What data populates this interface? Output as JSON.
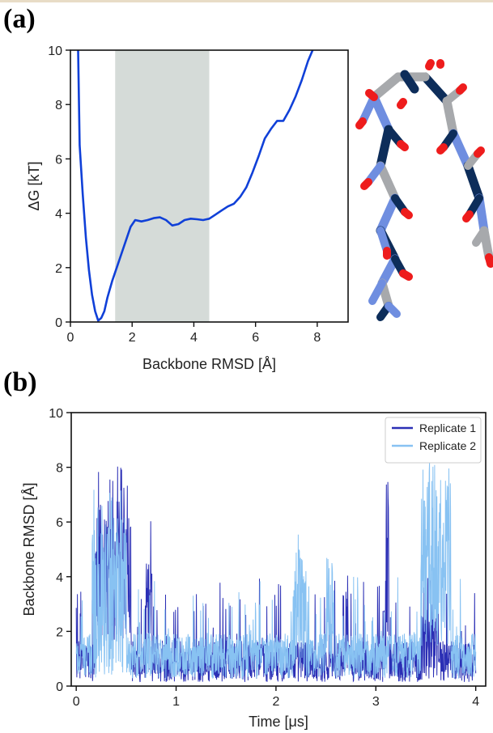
{
  "panels": {
    "a_label": "(a)",
    "b_label": "(b)"
  },
  "chart_data": [
    {
      "type": "line",
      "panel": "(a)",
      "title": "",
      "xlabel": "Backbone RMSD [Å]",
      "ylabel": "ΔG [kT]",
      "xlim": [
        0,
        9
      ],
      "ylim": [
        0,
        10
      ],
      "xticks": [
        0,
        2,
        4,
        6,
        8
      ],
      "yticks": [
        0,
        2,
        4,
        6,
        8,
        10
      ],
      "grid": false,
      "shaded_region": {
        "x_start": 1.45,
        "x_end": 4.5,
        "color": "#d5dbd8"
      },
      "line_color": "#1040d8",
      "series": [
        {
          "x": [
            0.25,
            0.3,
            0.4,
            0.5,
            0.6,
            0.7,
            0.8,
            0.9,
            1.0,
            1.1,
            1.2,
            1.35,
            1.5,
            1.65,
            1.8,
            1.95,
            2.1,
            2.3,
            2.5,
            2.7,
            2.9,
            3.1,
            3.3,
            3.5,
            3.7,
            3.9,
            4.1,
            4.3,
            4.5,
            4.7,
            4.9,
            5.1,
            5.3,
            5.5,
            5.7,
            5.9,
            6.1,
            6.3,
            6.5,
            6.7,
            6.9,
            7.1,
            7.3,
            7.5,
            7.7,
            7.85
          ],
          "y": [
            10.0,
            6.5,
            4.7,
            3.1,
            1.9,
            1.0,
            0.4,
            0.05,
            0.15,
            0.4,
            0.9,
            1.5,
            2.0,
            2.5,
            3.0,
            3.5,
            3.75,
            3.7,
            3.75,
            3.82,
            3.85,
            3.75,
            3.55,
            3.6,
            3.75,
            3.8,
            3.78,
            3.75,
            3.8,
            3.95,
            4.1,
            4.25,
            4.35,
            4.6,
            4.95,
            5.5,
            6.1,
            6.75,
            7.1,
            7.4,
            7.4,
            7.8,
            8.3,
            8.9,
            9.6,
            10.0
          ]
        }
      ]
    },
    {
      "type": "line",
      "panel": "(b)",
      "title": "",
      "xlabel": "Time [μs]",
      "ylabel": "Backbone RMSD [Å]",
      "xlim": [
        -0.05,
        4.1
      ],
      "ylim": [
        0,
        10
      ],
      "xticks": [
        0,
        1,
        2,
        3,
        4
      ],
      "yticks": [
        0,
        2,
        4,
        6,
        8,
        10
      ],
      "grid": false,
      "legend_position": "top-right",
      "series": [
        {
          "name": "Replicate 1",
          "color": "#2b2fb5",
          "x_start": 0,
          "x_end": 4,
          "baseline_mean": 0.9,
          "noise_amplitude": 1.0,
          "excursions": [
            {
              "t_start": 0.19,
              "t_end": 0.55,
              "mean": 4.2,
              "amplitude": 2.6,
              "peak": 8.1
            },
            {
              "t_start": 0.7,
              "t_end": 0.76,
              "mean": 2.5,
              "amplitude": 2.0,
              "peak": 6.2
            },
            {
              "t_start": 2.7,
              "t_end": 2.72,
              "mean": 2.5,
              "amplitude": 2.0,
              "peak": 4.6
            },
            {
              "t_start": 3.1,
              "t_end": 3.13,
              "mean": 3.5,
              "amplitude": 3.5,
              "peak": 7.9
            },
            {
              "t_start": 3.45,
              "t_end": 3.62,
              "mean": 1.6,
              "amplitude": 1.5,
              "peak": 4.3
            }
          ]
        },
        {
          "name": "Replicate 2",
          "color": "#88c2f2",
          "x_start": 0,
          "x_end": 4,
          "baseline_mean": 1.1,
          "noise_amplitude": 1.1,
          "excursions": [
            {
              "t_start": 0.16,
              "t_end": 0.5,
              "mean": 3.2,
              "amplitude": 3.0,
              "peak": 7.5
            },
            {
              "t_start": 2.18,
              "t_end": 2.3,
              "mean": 2.8,
              "amplitude": 2.2,
              "peak": 5.6
            },
            {
              "t_start": 2.5,
              "t_end": 2.58,
              "mean": 2.5,
              "amplitude": 2.0,
              "peak": 5.1
            },
            {
              "t_start": 3.45,
              "t_end": 3.75,
              "mean": 4.3,
              "amplitude": 3.0,
              "peak": 8.2
            }
          ]
        }
      ]
    }
  ],
  "structure": {
    "stick_colors": {
      "carbon": "#a7a9ac",
      "nitrogen_light": "#6f8ee0",
      "nitrogen_dark": "#0d2d5a",
      "oxygen": "#ee1c1c"
    }
  }
}
